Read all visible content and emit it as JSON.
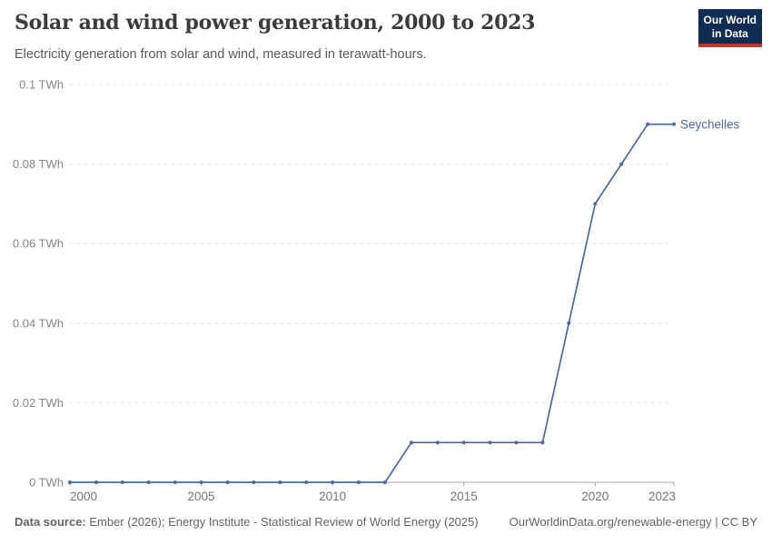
{
  "header": {
    "title": "Solar and wind power generation, 2000 to 2023",
    "subtitle": "Electricity generation from solar and wind, measured in terawatt-hours.",
    "logo": {
      "line1": "Our World",
      "line2": "in Data"
    }
  },
  "chart_data": {
    "type": "line",
    "title": "Solar and wind power generation, 2000 to 2023",
    "xlabel": "",
    "ylabel": "TWh",
    "xlim": [
      2000,
      2023
    ],
    "ylim": [
      0,
      0.1
    ],
    "grid": "horizontal-dashed",
    "legend_position": "end-of-line-label",
    "x": [
      2000,
      2001,
      2002,
      2003,
      2004,
      2005,
      2006,
      2007,
      2008,
      2009,
      2010,
      2011,
      2012,
      2013,
      2014,
      2015,
      2016,
      2017,
      2018,
      2019,
      2020,
      2021,
      2022,
      2023
    ],
    "series": [
      {
        "name": "Seychelles",
        "color": "#4a69a5",
        "values": [
          0,
          0,
          0,
          0,
          0,
          0,
          0,
          0,
          0,
          0,
          0,
          0,
          0,
          0.01,
          0.01,
          0.01,
          0.01,
          0.01,
          0.01,
          0.04,
          0.07,
          0.08,
          0.09,
          0.09
        ]
      }
    ],
    "yticks": [
      0,
      0.02,
      0.04,
      0.06,
      0.08,
      0.1
    ],
    "ytick_labels": [
      "0 TWh",
      "0.02 TWh",
      "0.04 TWh",
      "0.06 TWh",
      "0.08 TWh",
      "0.1 TWh"
    ],
    "xticks": [
      2000,
      2005,
      2010,
      2015,
      2020,
      2023
    ],
    "xtick_labels": [
      "2000",
      "2005",
      "2010",
      "2015",
      "2020",
      "2023"
    ]
  },
  "footer": {
    "source_label": "Data source:",
    "source_text": "Ember (2026); Energy Institute - Statistical Review of World Energy (2025)",
    "attribution": "OurWorldinData.org/renewable-energy | CC BY"
  },
  "colors": {
    "line": "#4a69a5",
    "logo_bg": "#0f2d52",
    "logo_accent": "#c0372e",
    "grid": "#e4e4e4",
    "axis": "#a8a8a8",
    "y_tick_text": "#858585",
    "x_tick_text": "#757575",
    "title_text": "#3c3c3c",
    "subtitle_text": "#5b5b5b",
    "footer_text": "#636363"
  }
}
